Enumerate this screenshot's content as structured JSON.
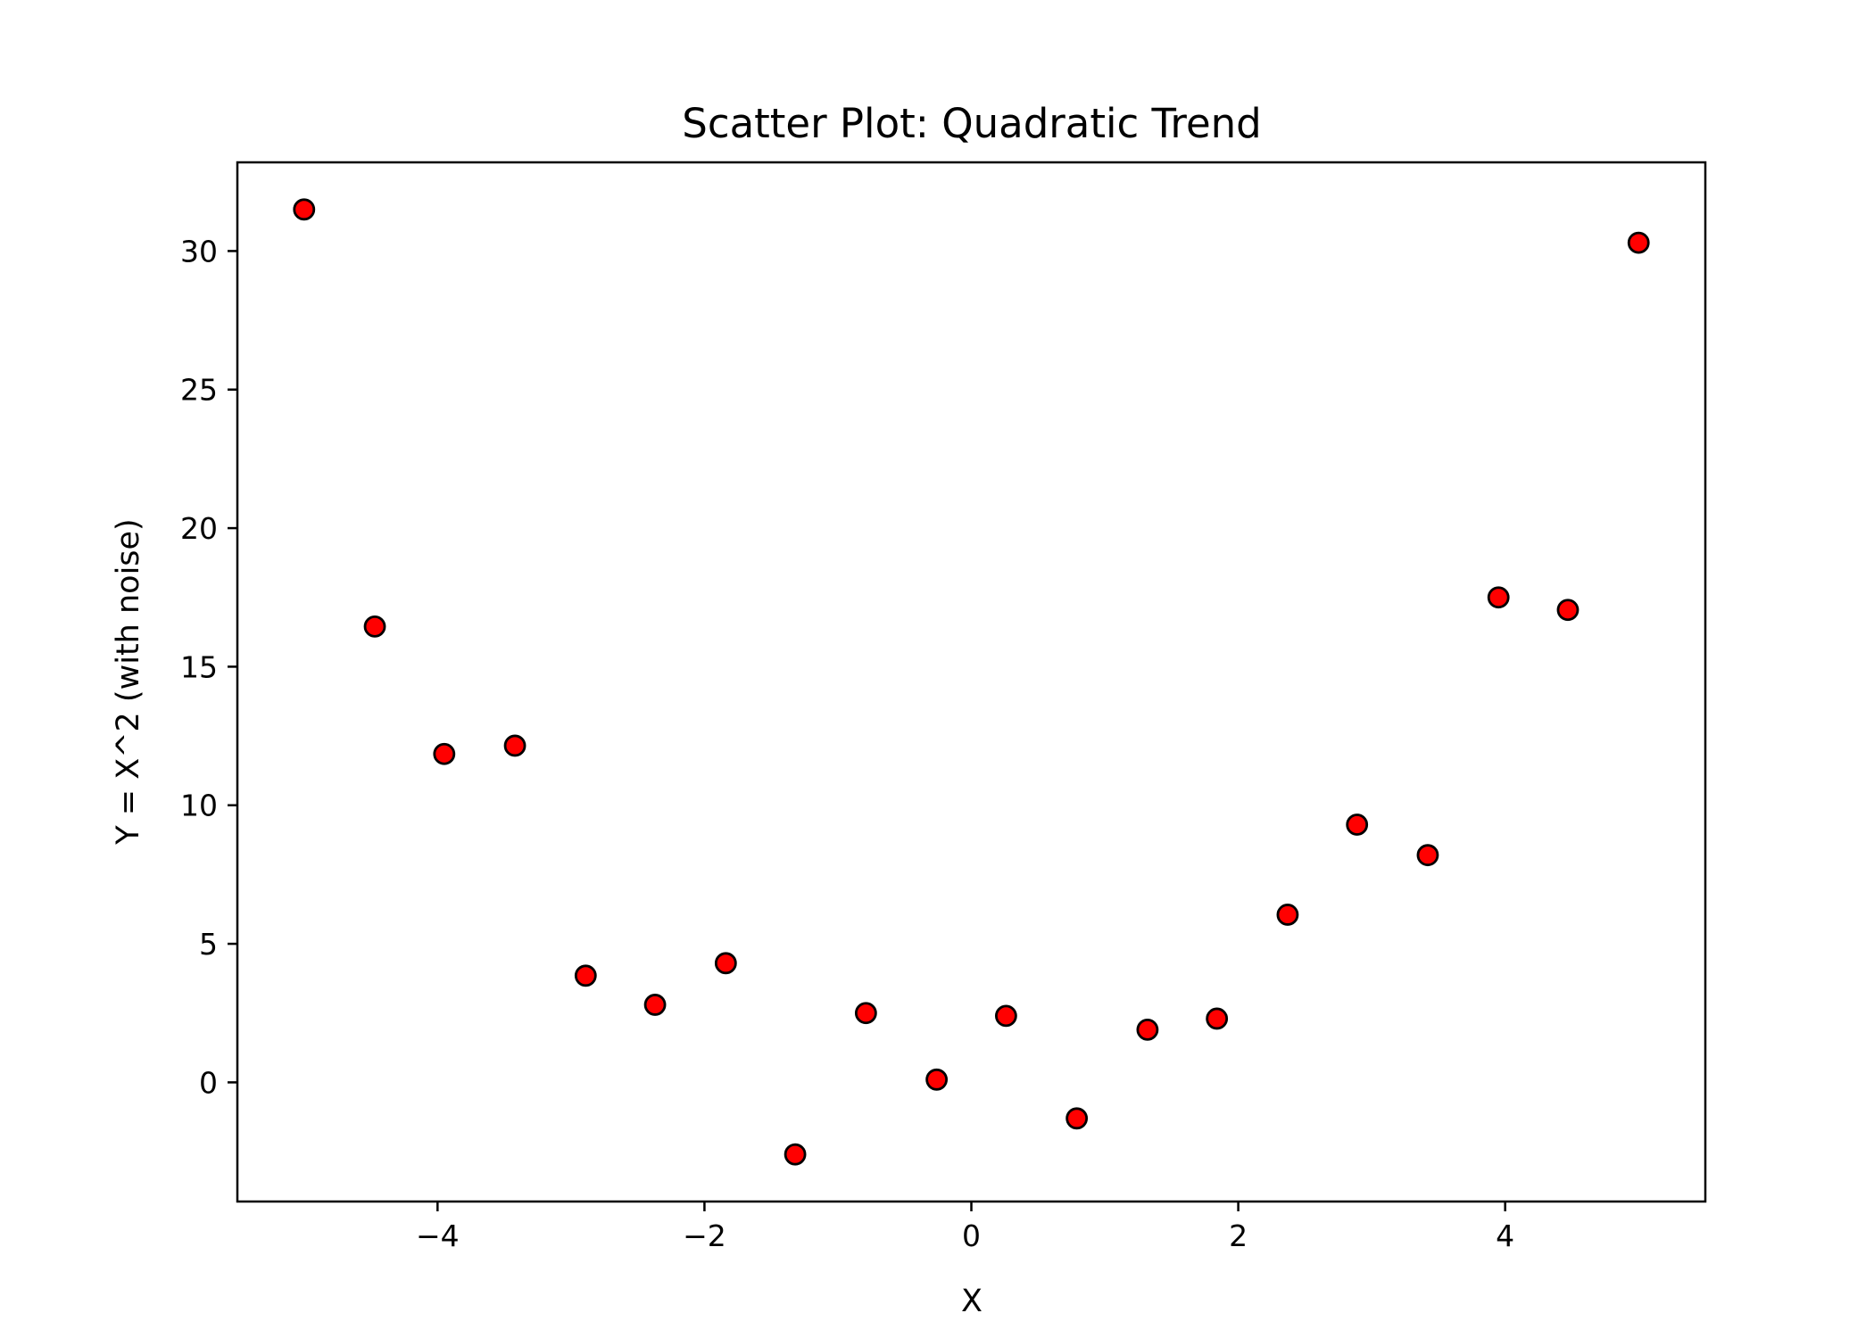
{
  "chart_data": {
    "type": "scatter",
    "title": "Scatter Plot: Quadratic Trend",
    "xlabel": "X",
    "ylabel": "Y = X^2 (with noise)",
    "xlim": [
      -5.5,
      5.5
    ],
    "ylim": [
      -4.3,
      33.2
    ],
    "x_ticks": [
      -4,
      -2,
      0,
      2,
      4
    ],
    "x_tick_labels": [
      "−4",
      "−2",
      "0",
      "2",
      "4"
    ],
    "y_ticks": [
      0,
      5,
      10,
      15,
      20,
      25,
      30
    ],
    "y_tick_labels": [
      "0",
      "5",
      "10",
      "15",
      "20",
      "25",
      "30"
    ],
    "grid": false,
    "marker_color": "#ff0000",
    "marker_edge_color": "#000000",
    "points": [
      {
        "x": -5.0,
        "y": 31.5
      },
      {
        "x": -4.47,
        "y": 16.45
      },
      {
        "x": -3.95,
        "y": 11.85
      },
      {
        "x": -3.42,
        "y": 12.15
      },
      {
        "x": -2.89,
        "y": 3.85
      },
      {
        "x": -2.37,
        "y": 2.8
      },
      {
        "x": -1.84,
        "y": 4.3
      },
      {
        "x": -1.32,
        "y": -2.6
      },
      {
        "x": -0.79,
        "y": 2.5
      },
      {
        "x": -0.26,
        "y": 0.1
      },
      {
        "x": 0.26,
        "y": 2.4
      },
      {
        "x": 0.79,
        "y": -1.3
      },
      {
        "x": 1.32,
        "y": 1.9
      },
      {
        "x": 1.84,
        "y": 2.3
      },
      {
        "x": 2.37,
        "y": 6.05
      },
      {
        "x": 2.89,
        "y": 9.3
      },
      {
        "x": 3.42,
        "y": 8.2
      },
      {
        "x": 3.95,
        "y": 17.5
      },
      {
        "x": 4.47,
        "y": 17.05
      },
      {
        "x": 5.0,
        "y": 30.3
      }
    ]
  }
}
